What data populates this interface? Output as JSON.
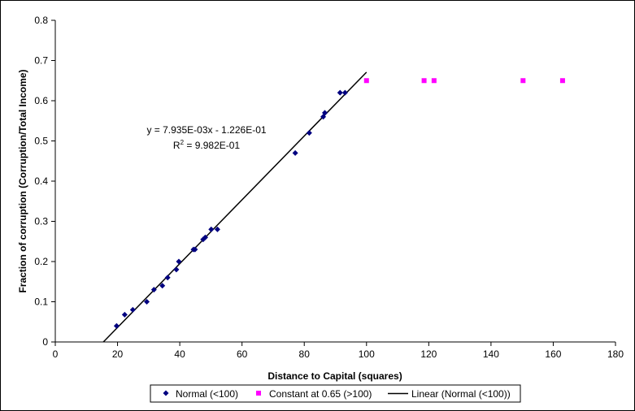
{
  "chart_data": {
    "type": "scatter",
    "xlabel": "Distance to Capital (squares)",
    "ylabel": "Fraction of corruption (Corruption/Total Income)",
    "xlim": [
      0,
      180
    ],
    "ylim": [
      0,
      0.8
    ],
    "x_ticks": [
      "0",
      "20",
      "40",
      "60",
      "80",
      "100",
      "120",
      "140",
      "160",
      "180"
    ],
    "y_ticks": [
      "0",
      "0.1",
      "0.2",
      "0.3",
      "0.4",
      "0.5",
      "0.6",
      "0.7",
      "0.8"
    ],
    "grid": false,
    "legend_position": "bottom",
    "series": [
      {
        "name": "Normal (<100)",
        "marker": "diamond",
        "color": "#000080",
        "points": [
          [
            19.7,
            0.04
          ],
          [
            22.3,
            0.068
          ],
          [
            24.9,
            0.08
          ],
          [
            29.4,
            0.1
          ],
          [
            31.7,
            0.13
          ],
          [
            34.4,
            0.14
          ],
          [
            36.1,
            0.16
          ],
          [
            38.9,
            0.18
          ],
          [
            39.7,
            0.2
          ],
          [
            44.4,
            0.23
          ],
          [
            44.9,
            0.23
          ],
          [
            47.5,
            0.255
          ],
          [
            48.2,
            0.26
          ],
          [
            50.1,
            0.28
          ],
          [
            52.1,
            0.28
          ],
          [
            77.1,
            0.47
          ],
          [
            81.6,
            0.52
          ],
          [
            86.1,
            0.56
          ],
          [
            86.6,
            0.57
          ],
          [
            91.5,
            0.62
          ],
          [
            93.1,
            0.62
          ]
        ]
      },
      {
        "name": "Constant at 0.65 (>100)",
        "marker": "square",
        "color": "#ff00ff",
        "points": [
          [
            100.0,
            0.65
          ],
          [
            118.5,
            0.65
          ],
          [
            121.7,
            0.65
          ],
          [
            150.3,
            0.65
          ],
          [
            163.0,
            0.65
          ]
        ]
      },
      {
        "name": "Linear (Normal (<100))",
        "marker": "line",
        "color": "#000000",
        "slope": 0.007935,
        "intercept": -0.1226,
        "x_range": [
          15.45,
          100
        ]
      }
    ],
    "annotations": {
      "equation": "y = 7.935E-03x - 1.226E-01",
      "r2_prefix": "R",
      "r2_sup": "2",
      "r2_value": " = 9.982E-01"
    }
  }
}
